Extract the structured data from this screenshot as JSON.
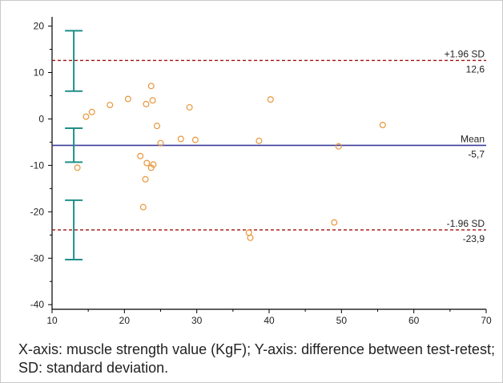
{
  "chart_data": {
    "type": "scatter",
    "title": "",
    "xlabel": "",
    "ylabel": "",
    "xlim": [
      10,
      70
    ],
    "ylim": [
      -41,
      22
    ],
    "x_ticks": [
      10,
      20,
      30,
      40,
      50,
      60,
      70
    ],
    "y_ticks": [
      -40,
      -30,
      -20,
      -10,
      0,
      10,
      20
    ],
    "grid": false,
    "points": [
      {
        "x": 13.5,
        "y": -10.5
      },
      {
        "x": 14.7,
        "y": 0.5
      },
      {
        "x": 15.5,
        "y": 1.5
      },
      {
        "x": 18.0,
        "y": 3.0
      },
      {
        "x": 20.5,
        "y": 4.3
      },
      {
        "x": 22.2,
        "y": -8.0
      },
      {
        "x": 22.6,
        "y": -19.0
      },
      {
        "x": 22.9,
        "y": -13.0
      },
      {
        "x": 23.0,
        "y": 3.2
      },
      {
        "x": 23.1,
        "y": -9.5
      },
      {
        "x": 23.7,
        "y": 7.1
      },
      {
        "x": 23.7,
        "y": -10.5
      },
      {
        "x": 23.9,
        "y": 4.0
      },
      {
        "x": 24.0,
        "y": -9.8
      },
      {
        "x": 24.5,
        "y": -1.5
      },
      {
        "x": 25.0,
        "y": -5.2
      },
      {
        "x": 27.8,
        "y": -4.3
      },
      {
        "x": 29.0,
        "y": 2.5
      },
      {
        "x": 29.8,
        "y": -4.5
      },
      {
        "x": 37.2,
        "y": -24.5
      },
      {
        "x": 37.4,
        "y": -25.6
      },
      {
        "x": 38.6,
        "y": -4.7
      },
      {
        "x": 40.2,
        "y": 4.2
      },
      {
        "x": 49.0,
        "y": -22.3
      },
      {
        "x": 49.6,
        "y": -5.9
      },
      {
        "x": 55.7,
        "y": -1.3
      }
    ],
    "reference_lines": [
      {
        "label": "+1.96 SD",
        "value": 12.6,
        "value_text": "12,6",
        "style": "dashed",
        "color": "#a01010"
      },
      {
        "label": "Mean",
        "value": -5.7,
        "value_text": "-5,7",
        "style": "solid",
        "color": "#3b3b9c"
      },
      {
        "label": "-1.96 SD",
        "value": -23.9,
        "value_text": "-23,9",
        "style": "dashed",
        "color": "#a01010"
      }
    ],
    "confidence_intervals": [
      {
        "x": 13.0,
        "low": 6.0,
        "high": 19.0
      },
      {
        "x": 13.0,
        "low": -9.3,
        "high": -2.0
      },
      {
        "x": 13.0,
        "low": -30.3,
        "high": -17.5
      }
    ],
    "colors": {
      "points": "#e8963a",
      "ci": "#1f8f88",
      "axis": "#000000"
    }
  },
  "caption": "X-axis: muscle strength value (KgF); Y-axis: difference between test-retest; SD: standard deviation."
}
